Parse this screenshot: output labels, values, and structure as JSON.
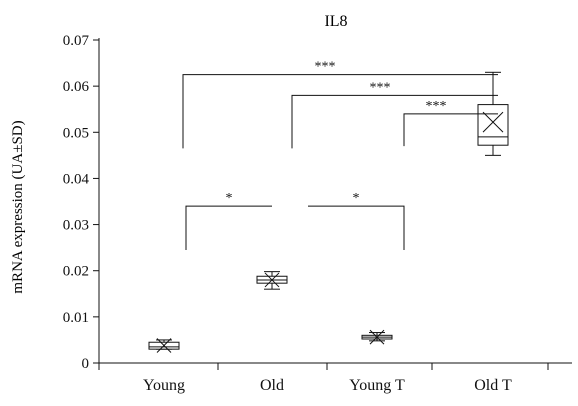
{
  "chart_data": {
    "type": "box",
    "title": "IL8",
    "ylabel": "mRNA expression (UA±SD)",
    "xlabel": "",
    "ylim": [
      0,
      0.07
    ],
    "yticks": [
      "0",
      "0.01",
      "0.02",
      "0.03",
      "0.04",
      "0.05",
      "0.06",
      "0.07"
    ],
    "categories": [
      "Young",
      "Old",
      "Young T",
      "Old T"
    ],
    "boxes": [
      {
        "category": "Young",
        "min": 0.003,
        "q1": 0.003,
        "median": 0.0035,
        "q3": 0.0045,
        "max": 0.005,
        "mean": 0.0038
      },
      {
        "category": "Old",
        "min": 0.016,
        "q1": 0.0173,
        "median": 0.018,
        "q3": 0.0188,
        "max": 0.0198,
        "mean": 0.018
      },
      {
        "category": "Young T",
        "min": 0.0048,
        "q1": 0.0052,
        "median": 0.0056,
        "q3": 0.006,
        "max": 0.0066,
        "mean": 0.0056
      },
      {
        "category": "Old T",
        "min": 0.045,
        "q1": 0.0472,
        "median": 0.049,
        "q3": 0.056,
        "max": 0.063,
        "mean": 0.0522
      }
    ],
    "significance": [
      {
        "from": "Young",
        "to": "Old",
        "label": "*",
        "level": 0.034,
        "start": 0.0245,
        "end": 0.034
      },
      {
        "from": "Old",
        "to": "Young T",
        "label": "*",
        "level": 0.034,
        "start": 0.034,
        "end": 0.0245
      },
      {
        "from": "Young",
        "to": "Old T",
        "label": "***",
        "level": 0.0625,
        "start": 0.0465,
        "end": 0.0625
      },
      {
        "from": "Old",
        "to": "Old T",
        "label": "***",
        "level": 0.058,
        "start": 0.0465,
        "end": 0.058
      },
      {
        "from": "Young T",
        "to": "Old T",
        "label": "***",
        "level": 0.054,
        "start": 0.047,
        "end": 0.054
      }
    ]
  }
}
